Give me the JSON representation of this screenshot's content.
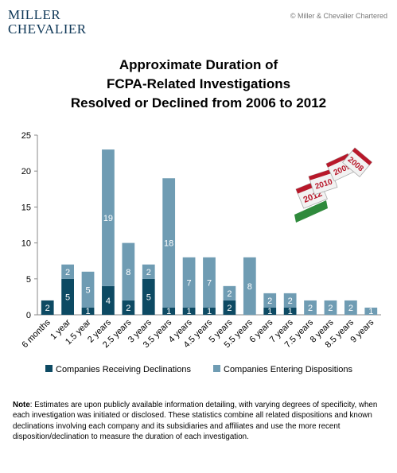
{
  "logo": {
    "line1": "MILLER",
    "line2": "CHEVALIER"
  },
  "copyright": "© Miller & Chevalier Chartered",
  "title_lines": [
    "Approximate Duration of",
    "FCPA-Related Investigations",
    "Resolved or Declined from 2006 to 2012"
  ],
  "decoration": {
    "calendar_years": [
      "2012",
      "2010",
      "2009",
      "2008"
    ]
  },
  "note": {
    "label": "Note",
    "text": ": Estimates are upon publicly available information detailing, with varying degrees of specificity, when each investigation was initiated or disclosed. These statistics combine all related dispositions and known declinations involving each company and its subsidiaries and affiliates and use the more recent disposition/declination to measure the duration of each investigation."
  },
  "colors": {
    "declinations": "#0d4a63",
    "dispositions": "#6f9cb3",
    "axis": "#888888",
    "gridline": "#d9d9d9"
  },
  "chart_data": {
    "type": "bar",
    "stacked": true,
    "title": "Approximate Duration of FCPA-Related Investigations Resolved or Declined from 2006 to 2012",
    "categories": [
      "6 months",
      "1 year",
      "1.5 year",
      "2 years",
      "2.5 years",
      "3 years",
      "3.5 years",
      "4 years",
      "4.5 years",
      "5 years",
      "5.5 years",
      "6 years",
      "7 years",
      "7.5 years",
      "8 years",
      "8.5 years",
      "9 years"
    ],
    "series": [
      {
        "name": "Companies Receiving Declinations",
        "values": [
          2,
          5,
          1,
          4,
          2,
          5,
          1,
          1,
          1,
          2,
          0,
          1,
          1,
          0,
          0,
          0,
          0
        ]
      },
      {
        "name": "Companies Entering Dispositions",
        "values": [
          0,
          2,
          5,
          19,
          8,
          2,
          18,
          7,
          7,
          2,
          8,
          2,
          2,
          2,
          2,
          2,
          1
        ]
      }
    ],
    "yticks": [
      0,
      5,
      10,
      15,
      20,
      25
    ],
    "ylim": [
      0,
      25
    ],
    "legend_position": "bottom",
    "grid": false
  }
}
